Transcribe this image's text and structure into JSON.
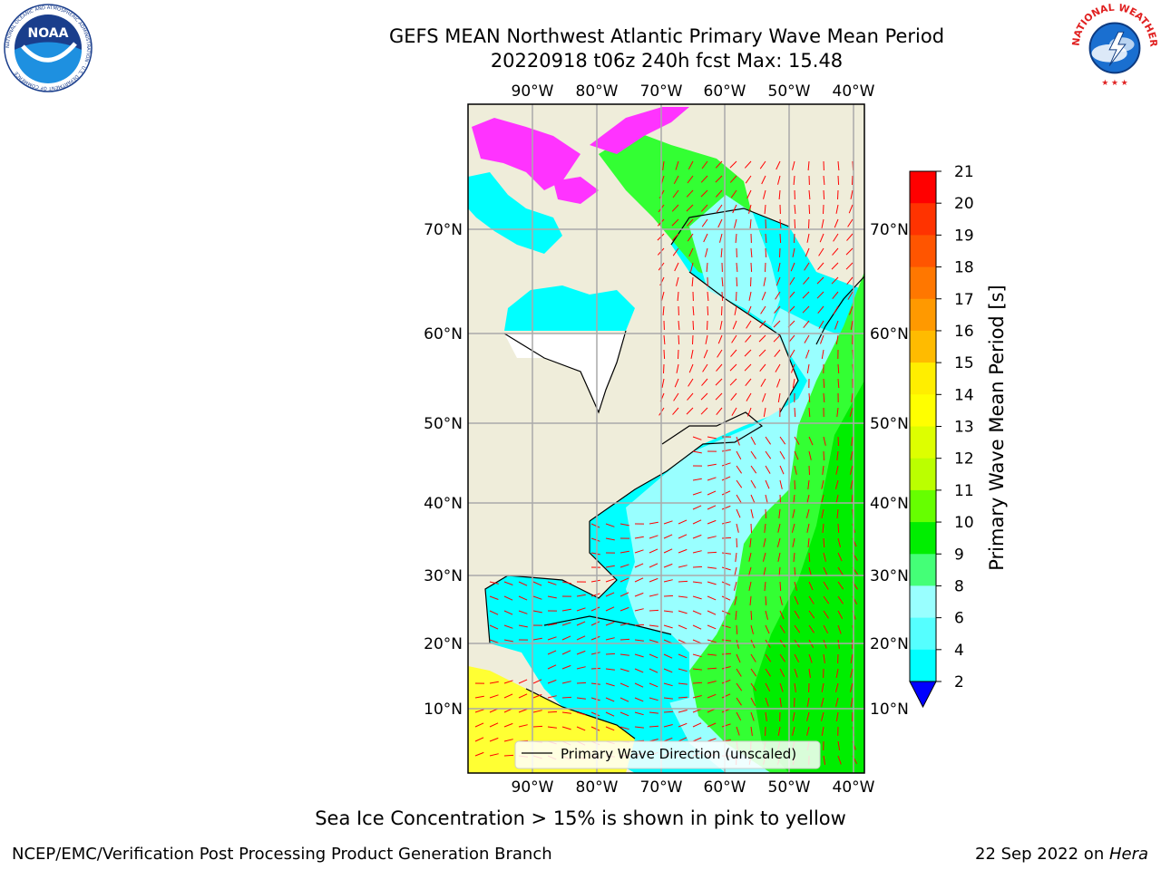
{
  "title": {
    "line1": "GEFS MEAN Northwest Atlantic Primary Wave Mean Period",
    "line2": "20220918 t06z 240h fcst   Max: 15.48"
  },
  "map": {
    "lon_ticks": [
      "90°W",
      "80°W",
      "70°W",
      "60°W",
      "50°W",
      "40°W"
    ],
    "lat_ticks": [
      "70°N",
      "60°N",
      "50°N",
      "40°N",
      "30°N",
      "20°N",
      "10°N"
    ],
    "legend_label": "Primary Wave Direction (unscaled)",
    "colors": {
      "land": "#efedda",
      "low_period": "#00ffff",
      "mid_period": "#99ffff",
      "high_period": "#33ff33",
      "arrows": "#ff0000",
      "ice": "#ff33ff"
    }
  },
  "colorbar": {
    "label": "Primary Wave Mean Period [s]",
    "ticks": [
      "21",
      "20",
      "19",
      "18",
      "17",
      "16",
      "15",
      "14",
      "13",
      "12",
      "11",
      "10",
      "9",
      "8",
      "6",
      "4",
      "2"
    ],
    "colors": [
      "#ff0000",
      "#ff3300",
      "#ff5500",
      "#ff7700",
      "#ff9900",
      "#ffbb00",
      "#ffee00",
      "#ffff00",
      "#ddff00",
      "#bbff00",
      "#66ff00",
      "#00ee00",
      "#44ff77",
      "#99ffff",
      "#55ffff",
      "#00ffff",
      "#00ddff",
      "#0077ff",
      "#0000ff"
    ]
  },
  "logos": {
    "noaa": {
      "text": "NOAA",
      "ring_text": "NATIONAL OCEANIC AND ATMOSPHERIC ADMINISTRATION · U.S. DEPARTMENT OF COMMERCE"
    },
    "nws": {
      "ring_text": "NATIONAL WEATHER SERVICE"
    }
  },
  "footer": {
    "note": "Sea Ice Concentration > 15% is shown in pink to yellow",
    "credit": "NCEP/EMC/Verification Post Processing Product Generation Branch",
    "date": "22 Sep 2022 on ",
    "host": "Hera"
  }
}
